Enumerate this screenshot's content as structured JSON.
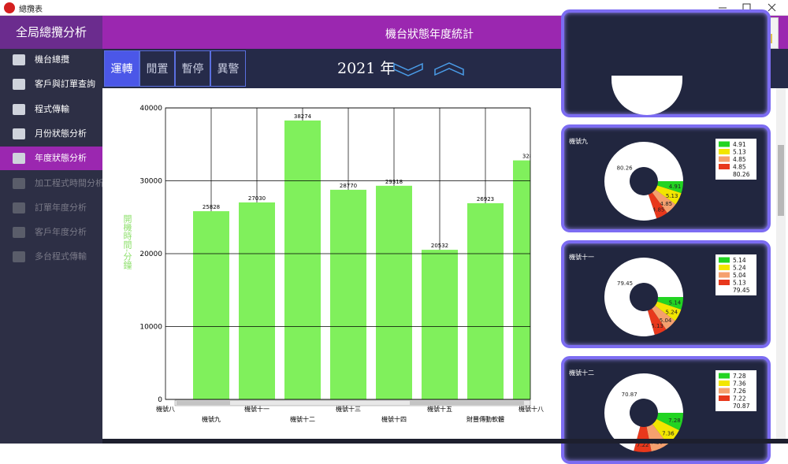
{
  "window": {
    "title": "總攬表"
  },
  "sidebar": {
    "title": "全局總攬分析",
    "items": [
      "機台總攬",
      "客戶與訂單查詢",
      "程式傳輸",
      "月份狀態分析",
      "年度狀態分析",
      "加工程式時間分析",
      "訂單年度分析",
      "客戶年度分析",
      "多台程式傳輸"
    ]
  },
  "header": {
    "title": "機台狀態年度統計"
  },
  "tabs": [
    "運轉",
    "閒置",
    "暫停",
    "異警"
  ],
  "year": "2021 年",
  "chart_data": [
    {
      "type": "bar",
      "ylabel": "開機時間-分鐘",
      "categories": [
        "機號八",
        "機號九",
        "機號十一",
        "機號十二",
        "機號十三",
        "機號十四",
        "機號十五",
        "財豐傳動軟體",
        "機號十八"
      ],
      "values": [
        null,
        25828,
        27030,
        38274,
        28770,
        29318,
        20532,
        26923,
        32800
      ],
      "color": "#80f05c",
      "ylim": [
        0,
        40000
      ],
      "yticks": [
        0,
        10000,
        20000,
        30000,
        40000
      ],
      "grid": true
    },
    {
      "type": "pie",
      "donut": true,
      "title": "機號九",
      "values": [
        4.91,
        5.13,
        4.85,
        4.85,
        80.26
      ],
      "colors": [
        "#22d422",
        "#f2e600",
        "#f5a06e",
        "#e8381c",
        "#ffffff"
      ]
    },
    {
      "type": "pie",
      "donut": true,
      "title": "機號十一",
      "values": [
        5.14,
        5.24,
        5.04,
        5.13,
        79.45
      ],
      "colors": [
        "#22d422",
        "#f2e600",
        "#f5a06e",
        "#e8381c",
        "#ffffff"
      ]
    },
    {
      "type": "pie",
      "donut": true,
      "title": "機號十二",
      "values": [
        7.28,
        7.36,
        7.26,
        7.22,
        70.87
      ],
      "colors": [
        "#22d422",
        "#f2e600",
        "#f5a06e",
        "#e8381c",
        "#ffffff"
      ]
    }
  ]
}
